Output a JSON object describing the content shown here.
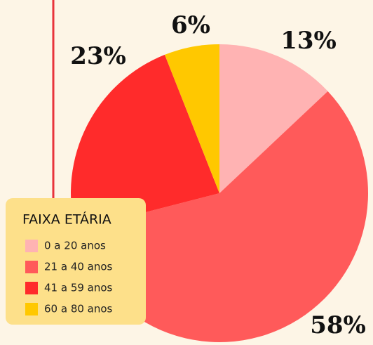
{
  "chart_data": {
    "type": "pie",
    "legend_title": "FAIXA ETÁRIA",
    "categories": [
      "0 a 20 anos",
      "21 a 40 anos",
      "41 a 59 anos",
      "60 a 80 anos"
    ],
    "values": [
      13,
      58,
      23,
      6
    ],
    "value_labels": [
      "13%",
      "58%",
      "23%",
      "6%"
    ],
    "colors": [
      "#ffb3b3",
      "#ff5a5a",
      "#ff2b2b",
      "#ffc800"
    ],
    "legend": "lower left"
  }
}
